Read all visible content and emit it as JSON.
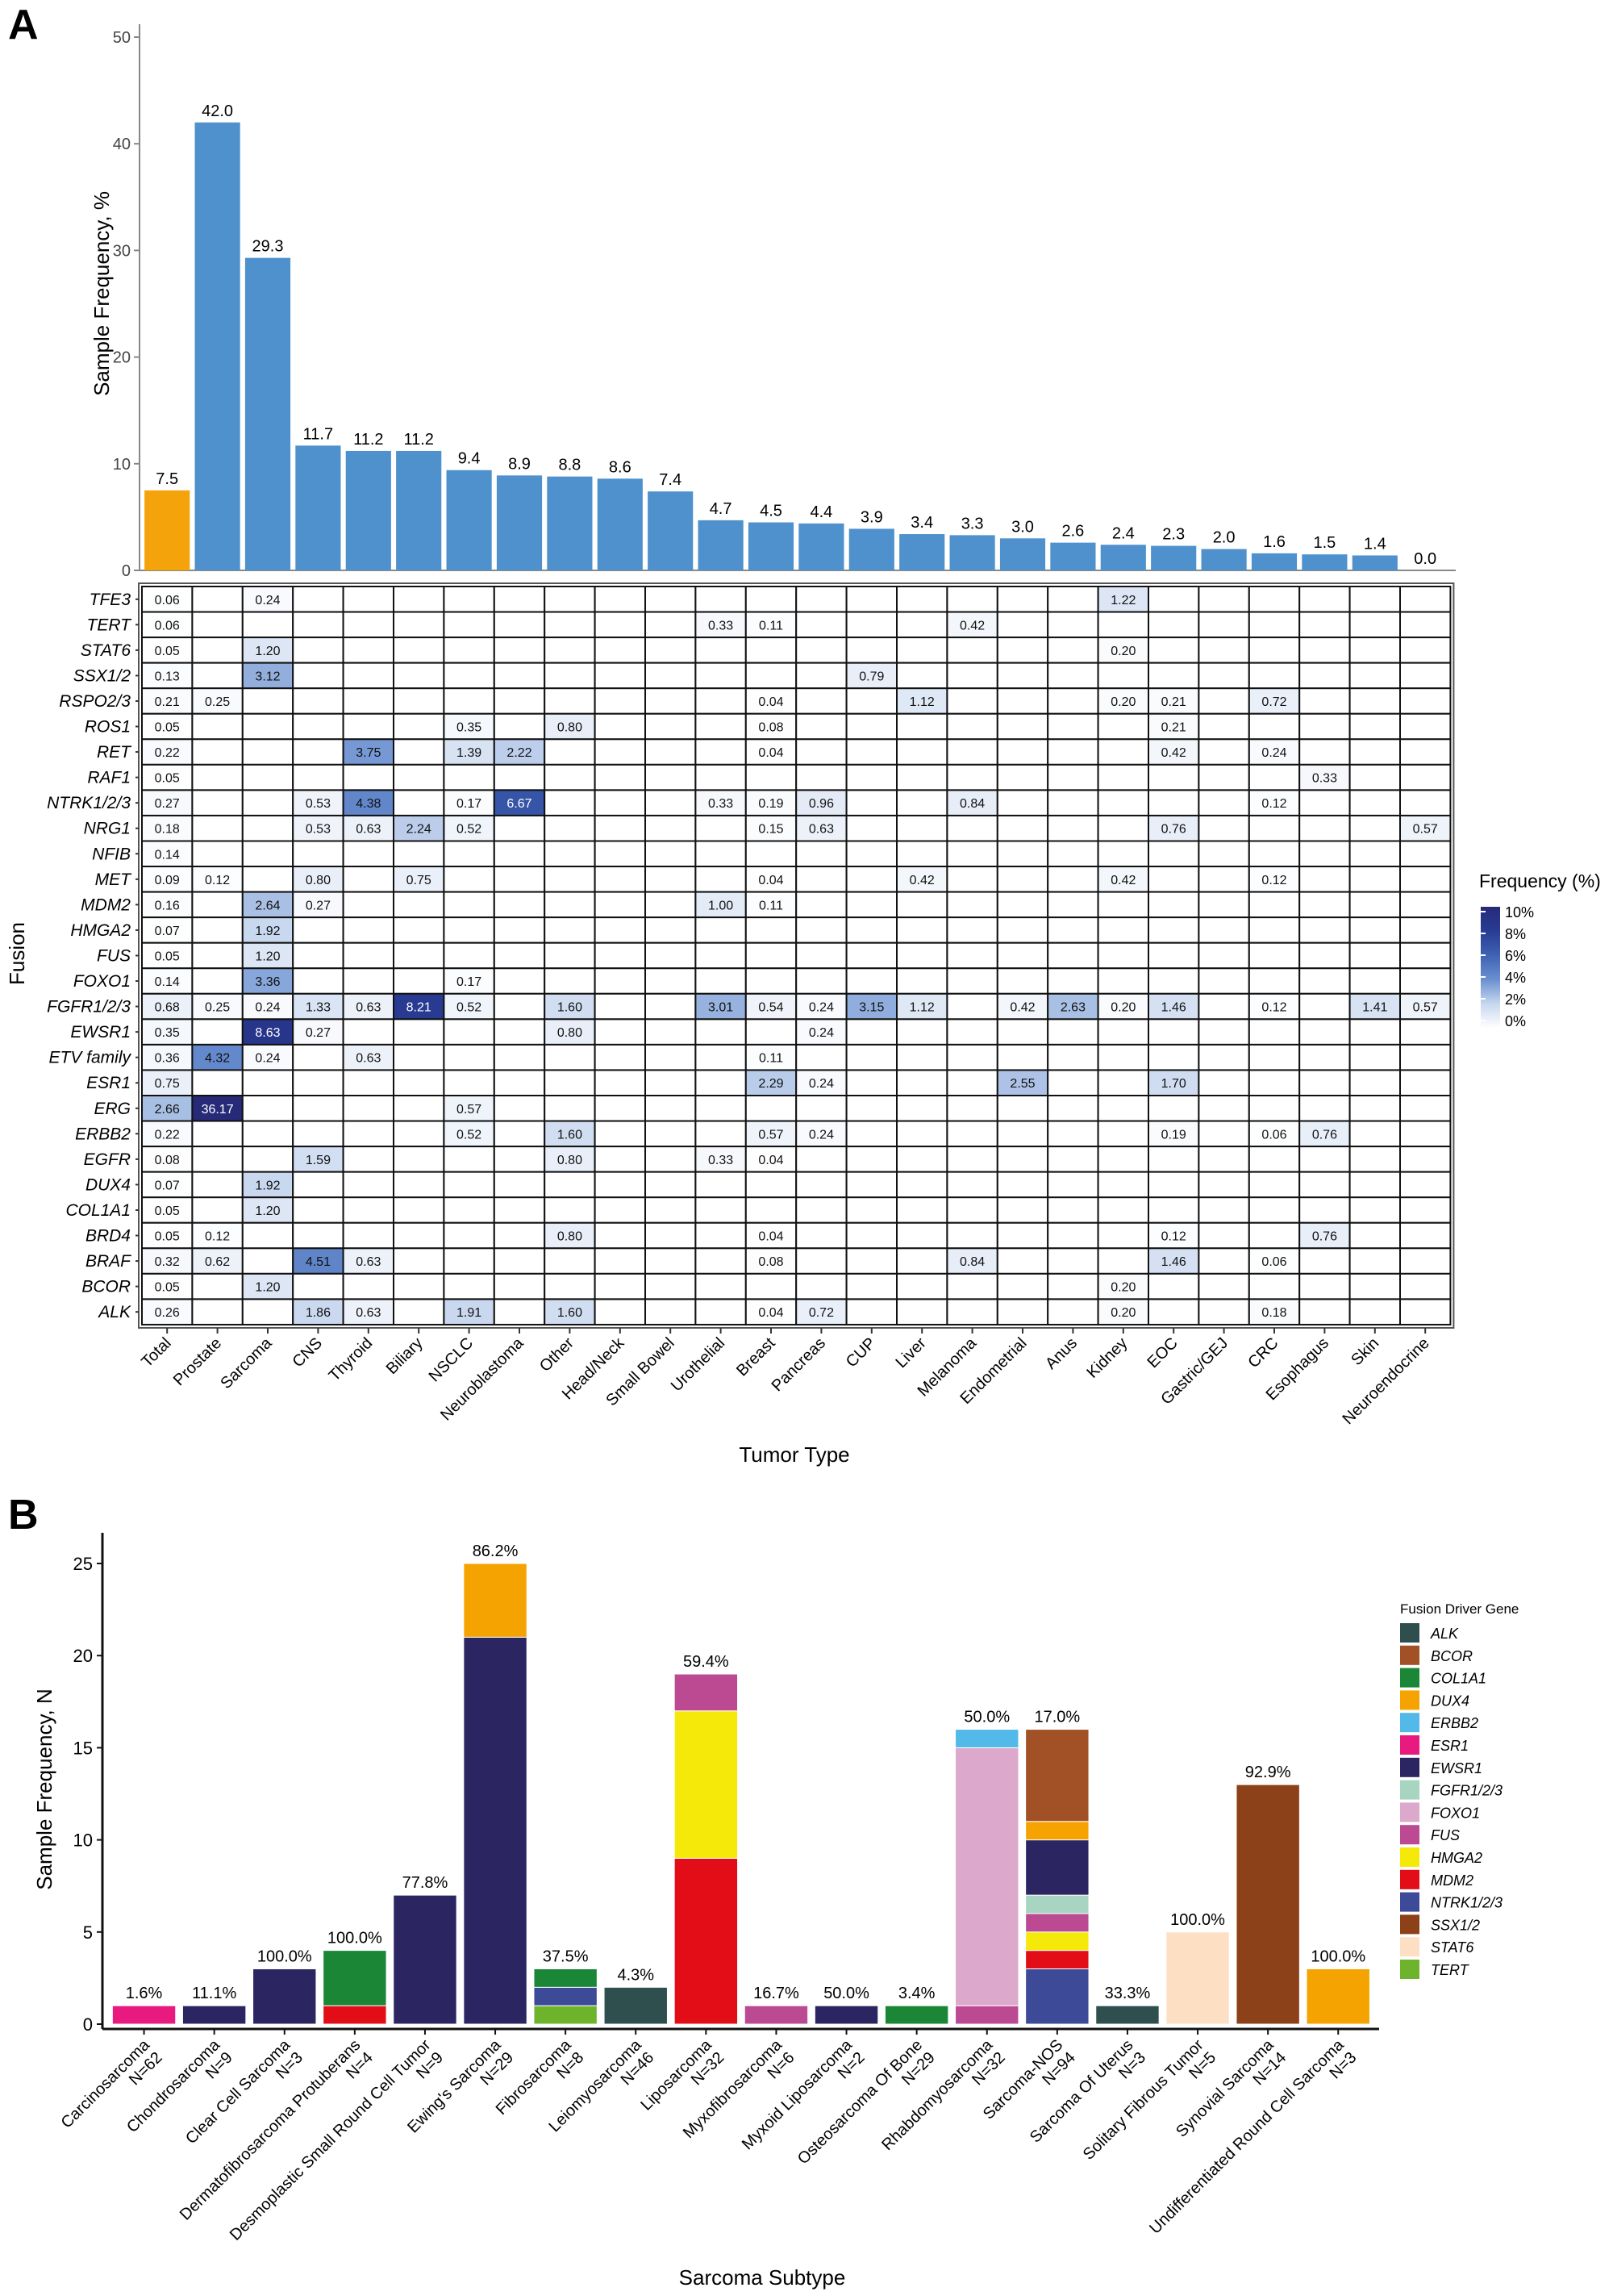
{
  "panel_labels": {
    "a": "A",
    "b": "B"
  },
  "chart_data": [
    {
      "type": "bar",
      "panel": "A",
      "ylabel": "Sample Frequency, %",
      "ylim": [
        0,
        50
      ],
      "yticks": [
        0,
        10,
        20,
        30,
        40,
        50
      ],
      "categories": [
        "Total",
        "Prostate",
        "Sarcoma",
        "CNS",
        "Thyroid",
        "Biliary",
        "NSCLC",
        "Neuroblastoma",
        "Other",
        "Head/Neck",
        "Small Bowel",
        "Urothelial",
        "Breast",
        "Pancreas",
        "CUP",
        "Liver",
        "Melanoma",
        "Endometrial",
        "Anus",
        "Kidney",
        "EOC",
        "Gastric/GEJ",
        "CRC",
        "Esophagus",
        "Skin",
        "Neuroendocrine"
      ],
      "values": [
        7.5,
        42.0,
        29.3,
        11.7,
        11.2,
        11.2,
        9.4,
        8.9,
        8.8,
        8.6,
        7.4,
        4.7,
        4.5,
        4.4,
        3.9,
        3.4,
        3.3,
        3.0,
        2.6,
        2.4,
        2.3,
        2.0,
        1.6,
        1.5,
        1.4,
        0.0
      ],
      "colors": {
        "total": "#f5a30a",
        "tumor": "#4f91cd"
      },
      "grid": false
    },
    {
      "type": "heatmap",
      "panel": "A",
      "xlabel": "Tumor Type",
      "ylabel": "Fusion",
      "legend": {
        "title": "Frequency (%)",
        "ticks": [
          "10%",
          "8%",
          "6%",
          "4%",
          "2%",
          "0%"
        ],
        "range": [
          0,
          10
        ],
        "placement": "right",
        "low_color": "#ffffff",
        "high_color": "#262a78"
      },
      "columns": [
        "Total",
        "Prostate",
        "Sarcoma",
        "CNS",
        "Thyroid",
        "Biliary",
        "NSCLC",
        "Neuroblastoma",
        "Other",
        "Head/Neck",
        "Small Bowel",
        "Urothelial",
        "Breast",
        "Pancreas",
        "CUP",
        "Liver",
        "Melanoma",
        "Endometrial",
        "Anus",
        "Kidney",
        "EOC",
        "Gastric/GEJ",
        "CRC",
        "Esophagus",
        "Skin",
        "Neuroendocrine"
      ],
      "rows": [
        {
          "gene": "TFE3",
          "cells": {
            "Total": 0.06,
            "Sarcoma": 0.24,
            "Kidney": 1.22
          }
        },
        {
          "gene": "TERT",
          "cells": {
            "Total": 0.06,
            "Urothelial": 0.33,
            "Breast": 0.11,
            "Melanoma": 0.42
          }
        },
        {
          "gene": "STAT6",
          "cells": {
            "Total": 0.05,
            "Sarcoma": 1.2,
            "Kidney": 0.2
          }
        },
        {
          "gene": "SSX1/2",
          "cells": {
            "Total": 0.13,
            "Sarcoma": 3.12,
            "CUP": 0.79
          }
        },
        {
          "gene": "RSPO2/3",
          "cells": {
            "Total": 0.21,
            "Prostate": 0.25,
            "Breast": 0.04,
            "Liver": 1.12,
            "Kidney": 0.2,
            "EOC": 0.21,
            "CRC": 0.72
          }
        },
        {
          "gene": "ROS1",
          "cells": {
            "Total": 0.05,
            "NSCLC": 0.35,
            "Other": 0.8,
            "Breast": 0.08,
            "EOC": 0.21
          }
        },
        {
          "gene": "RET",
          "cells": {
            "Total": 0.22,
            "Thyroid": 3.75,
            "NSCLC": 1.39,
            "Neuroblastoma": 2.22,
            "Breast": 0.04,
            "EOC": 0.42,
            "CRC": 0.24
          }
        },
        {
          "gene": "RAF1",
          "cells": {
            "Total": 0.05,
            "Esophagus": 0.33
          }
        },
        {
          "gene": "NTRK1/2/3",
          "cells": {
            "Total": 0.27,
            "CNS": 0.53,
            "Thyroid": 4.38,
            "NSCLC": 0.17,
            "Neuroblastoma": 6.67,
            "Urothelial": 0.33,
            "Breast": 0.19,
            "Pancreas": 0.96,
            "Melanoma": 0.84,
            "CRC": 0.12
          }
        },
        {
          "gene": "NRG1",
          "cells": {
            "Total": 0.18,
            "CNS": 0.53,
            "Thyroid": 0.63,
            "Biliary": 2.24,
            "NSCLC": 0.52,
            "Breast": 0.15,
            "Pancreas": 0.63,
            "EOC": 0.76,
            "Neuroendocrine": 0.57
          }
        },
        {
          "gene": "NFIB",
          "cells": {
            "Total": 0.14
          }
        },
        {
          "gene": "MET",
          "cells": {
            "Total": 0.09,
            "Prostate": 0.12,
            "CNS": 0.8,
            "Biliary": 0.75,
            "Breast": 0.04,
            "Liver": 0.42,
            "Kidney": 0.42,
            "CRC": 0.12
          }
        },
        {
          "gene": "MDM2",
          "cells": {
            "Total": 0.16,
            "Sarcoma": 2.64,
            "CNS": 0.27,
            "Urothelial": 1.0,
            "Breast": 0.11
          }
        },
        {
          "gene": "HMGA2",
          "cells": {
            "Total": 0.07,
            "Sarcoma": 1.92
          }
        },
        {
          "gene": "FUS",
          "cells": {
            "Total": 0.05,
            "Sarcoma": 1.2
          }
        },
        {
          "gene": "FOXO1",
          "cells": {
            "Total": 0.14,
            "Sarcoma": 3.36,
            "NSCLC": 0.17
          }
        },
        {
          "gene": "FGFR1/2/3",
          "cells": {
            "Total": 0.68,
            "Prostate": 0.25,
            "Sarcoma": 0.24,
            "CNS": 1.33,
            "Thyroid": 0.63,
            "Biliary": 8.21,
            "NSCLC": 0.52,
            "Other": 1.6,
            "Urothelial": 3.01,
            "Breast": 0.54,
            "Pancreas": 0.24,
            "CUP": 3.15,
            "Liver": 1.12,
            "Endometrial": 0.42,
            "Anus": 2.63,
            "Kidney": 0.2,
            "EOC": 1.46,
            "CRC": 0.12,
            "Skin": 1.41,
            "Neuroendocrine": 0.57
          }
        },
        {
          "gene": "EWSR1",
          "cells": {
            "Total": 0.35,
            "Sarcoma": 8.63,
            "CNS": 0.27,
            "Other": 0.8,
            "Pancreas": 0.24
          }
        },
        {
          "gene": "ETV family",
          "cells": {
            "Total": 0.36,
            "Prostate": 4.32,
            "Sarcoma": 0.24,
            "Thyroid": 0.63,
            "Breast": 0.11
          }
        },
        {
          "gene": "ESR1",
          "cells": {
            "Total": 0.75,
            "Breast": 2.29,
            "Pancreas": 0.24,
            "Endometrial": 2.55,
            "EOC": 1.7
          }
        },
        {
          "gene": "ERG",
          "cells": {
            "Total": 2.66,
            "Prostate": 36.17,
            "NSCLC": 0.57
          }
        },
        {
          "gene": "ERBB2",
          "cells": {
            "Total": 0.22,
            "NSCLC": 0.52,
            "Other": 1.6,
            "Breast": 0.57,
            "Pancreas": 0.24,
            "EOC": 0.19,
            "CRC": 0.06,
            "Esophagus": 0.76
          }
        },
        {
          "gene": "EGFR",
          "cells": {
            "Total": 0.08,
            "CNS": 1.59,
            "Other": 0.8,
            "Urothelial": 0.33,
            "Breast": 0.04
          }
        },
        {
          "gene": "DUX4",
          "cells": {
            "Total": 0.07,
            "Sarcoma": 1.92
          }
        },
        {
          "gene": "COL1A1",
          "cells": {
            "Total": 0.05,
            "Sarcoma": 1.2
          }
        },
        {
          "gene": "BRD4",
          "cells": {
            "Total": 0.05,
            "Prostate": 0.12,
            "Other": 0.8,
            "Breast": 0.04,
            "EOC": 0.12,
            "Esophagus": 0.76
          }
        },
        {
          "gene": "BRAF",
          "cells": {
            "Total": 0.32,
            "Prostate": 0.62,
            "CNS": 4.51,
            "Thyroid": 0.63,
            "Breast": 0.08,
            "Melanoma": 0.84,
            "EOC": 1.46,
            "CRC": 0.06
          }
        },
        {
          "gene": "BCOR",
          "cells": {
            "Total": 0.05,
            "Sarcoma": 1.2,
            "Kidney": 0.2
          }
        },
        {
          "gene": "ALK",
          "cells": {
            "Total": 0.26,
            "CNS": 1.86,
            "Thyroid": 0.63,
            "NSCLC": 1.91,
            "Other": 1.6,
            "Breast": 0.04,
            "Pancreas": 0.72,
            "Kidney": 0.2,
            "CRC": 0.18
          }
        }
      ]
    },
    {
      "type": "bar",
      "stacked": true,
      "panel": "B",
      "xlabel": "Sarcoma Subtype",
      "ylabel": "Sample Frequency, N",
      "ylim": [
        0,
        26
      ],
      "yticks": [
        0,
        5,
        10,
        15,
        20,
        25
      ],
      "legend": {
        "title": "Fusion Driver Gene",
        "placement": "right"
      },
      "genes": [
        {
          "name": "ALK",
          "color": "#2f4f4f"
        },
        {
          "name": "BCOR",
          "color": "#a25026"
        },
        {
          "name": "COL1A1",
          "color": "#1b8636"
        },
        {
          "name": "DUX4",
          "color": "#f5a300"
        },
        {
          "name": "ERBB2",
          "color": "#52b9e9"
        },
        {
          "name": "ESR1",
          "color": "#e8197f"
        },
        {
          "name": "EWSR1",
          "color": "#2b2662"
        },
        {
          "name": "FGFR1/2/3",
          "color": "#a8d5c2"
        },
        {
          "name": "FOXO1",
          "color": "#dca8cc"
        },
        {
          "name": "FUS",
          "color": "#bc4a93"
        },
        {
          "name": "HMGA2",
          "color": "#f5e90a"
        },
        {
          "name": "MDM2",
          "color": "#e20d17"
        },
        {
          "name": "NTRK1/2/3",
          "color": "#3c4a98"
        },
        {
          "name": "SSX1/2",
          "color": "#8d4118"
        },
        {
          "name": "STAT6",
          "color": "#fddfc4"
        },
        {
          "name": "TERT",
          "color": "#6db42c"
        }
      ],
      "bars": [
        {
          "subtype": "Carcinosarcoma",
          "n": "N=62",
          "pct": "1.6%",
          "stack": [
            [
              "ESR1",
              1
            ]
          ]
        },
        {
          "subtype": "Chondrosarcoma",
          "n": "N=9",
          "pct": "11.1%",
          "stack": [
            [
              "EWSR1",
              1
            ]
          ]
        },
        {
          "subtype": "Clear Cell Sarcoma",
          "n": "N=3",
          "pct": "100.0%",
          "stack": [
            [
              "EWSR1",
              3
            ]
          ]
        },
        {
          "subtype": "Dermatofibrosarcoma Protuberans",
          "n": "N=4",
          "pct": "100.0%",
          "stack": [
            [
              "MDM2",
              1
            ],
            [
              "COL1A1",
              3
            ]
          ]
        },
        {
          "subtype": "Desmoplastic Small Round Cell Tumor",
          "n": "N=9",
          "pct": "77.8%",
          "stack": [
            [
              "EWSR1",
              7
            ]
          ]
        },
        {
          "subtype": "Ewing's Sarcoma",
          "n": "N=29",
          "pct": "86.2%",
          "stack": [
            [
              "EWSR1",
              21
            ],
            [
              "DUX4",
              4
            ]
          ]
        },
        {
          "subtype": "Fibrosarcoma",
          "n": "N=8",
          "pct": "37.5%",
          "stack": [
            [
              "TERT",
              1
            ],
            [
              "NTRK1/2/3",
              1
            ],
            [
              "COL1A1",
              1
            ]
          ]
        },
        {
          "subtype": "Leiomyosarcoma",
          "n": "N=46",
          "pct": "4.3%",
          "stack": [
            [
              "ALK",
              2
            ]
          ]
        },
        {
          "subtype": "Liposarcoma",
          "n": "N=32",
          "pct": "59.4%",
          "stack": [
            [
              "MDM2",
              9
            ],
            [
              "HMGA2",
              8
            ],
            [
              "FUS",
              2
            ]
          ]
        },
        {
          "subtype": "Myxofibrosarcoma",
          "n": "N=6",
          "pct": "16.7%",
          "stack": [
            [
              "FUS",
              1
            ]
          ]
        },
        {
          "subtype": "Myxoid Liposarcoma",
          "n": "N=2",
          "pct": "50.0%",
          "stack": [
            [
              "EWSR1",
              1
            ]
          ]
        },
        {
          "subtype": "Osteosarcoma Of Bone",
          "n": "N=29",
          "pct": "3.4%",
          "stack": [
            [
              "COL1A1",
              1
            ]
          ]
        },
        {
          "subtype": "Rhabdomyosarcoma",
          "n": "N=32",
          "pct": "50.0%",
          "stack": [
            [
              "FUS",
              1
            ],
            [
              "FOXO1",
              14
            ],
            [
              "ERBB2",
              1
            ]
          ]
        },
        {
          "subtype": "Sarcoma-NOS",
          "n": "N=94",
          "pct": "17.0%",
          "stack": [
            [
              "NTRK1/2/3",
              3
            ],
            [
              "MDM2",
              1
            ],
            [
              "HMGA2",
              1
            ],
            [
              "FUS",
              1
            ],
            [
              "FGFR1/2/3",
              1
            ],
            [
              "EWSR1",
              3
            ],
            [
              "DUX4",
              1
            ],
            [
              "BCOR",
              5
            ]
          ]
        },
        {
          "subtype": "Sarcoma Of Uterus",
          "n": "N=3",
          "pct": "33.3%",
          "stack": [
            [
              "ALK",
              1
            ]
          ]
        },
        {
          "subtype": "Solitary Fibrous Tumor",
          "n": "N=5",
          "pct": "100.0%",
          "stack": [
            [
              "STAT6",
              5
            ]
          ]
        },
        {
          "subtype": "Synovial Sarcoma",
          "n": "N=14",
          "pct": "92.9%",
          "stack": [
            [
              "SSX1/2",
              13
            ]
          ]
        },
        {
          "subtype": "Undifferentiated Round Cell Sarcoma",
          "n": "N=3",
          "pct": "100.0%",
          "stack": [
            [
              "DUX4",
              3
            ]
          ]
        }
      ]
    }
  ]
}
